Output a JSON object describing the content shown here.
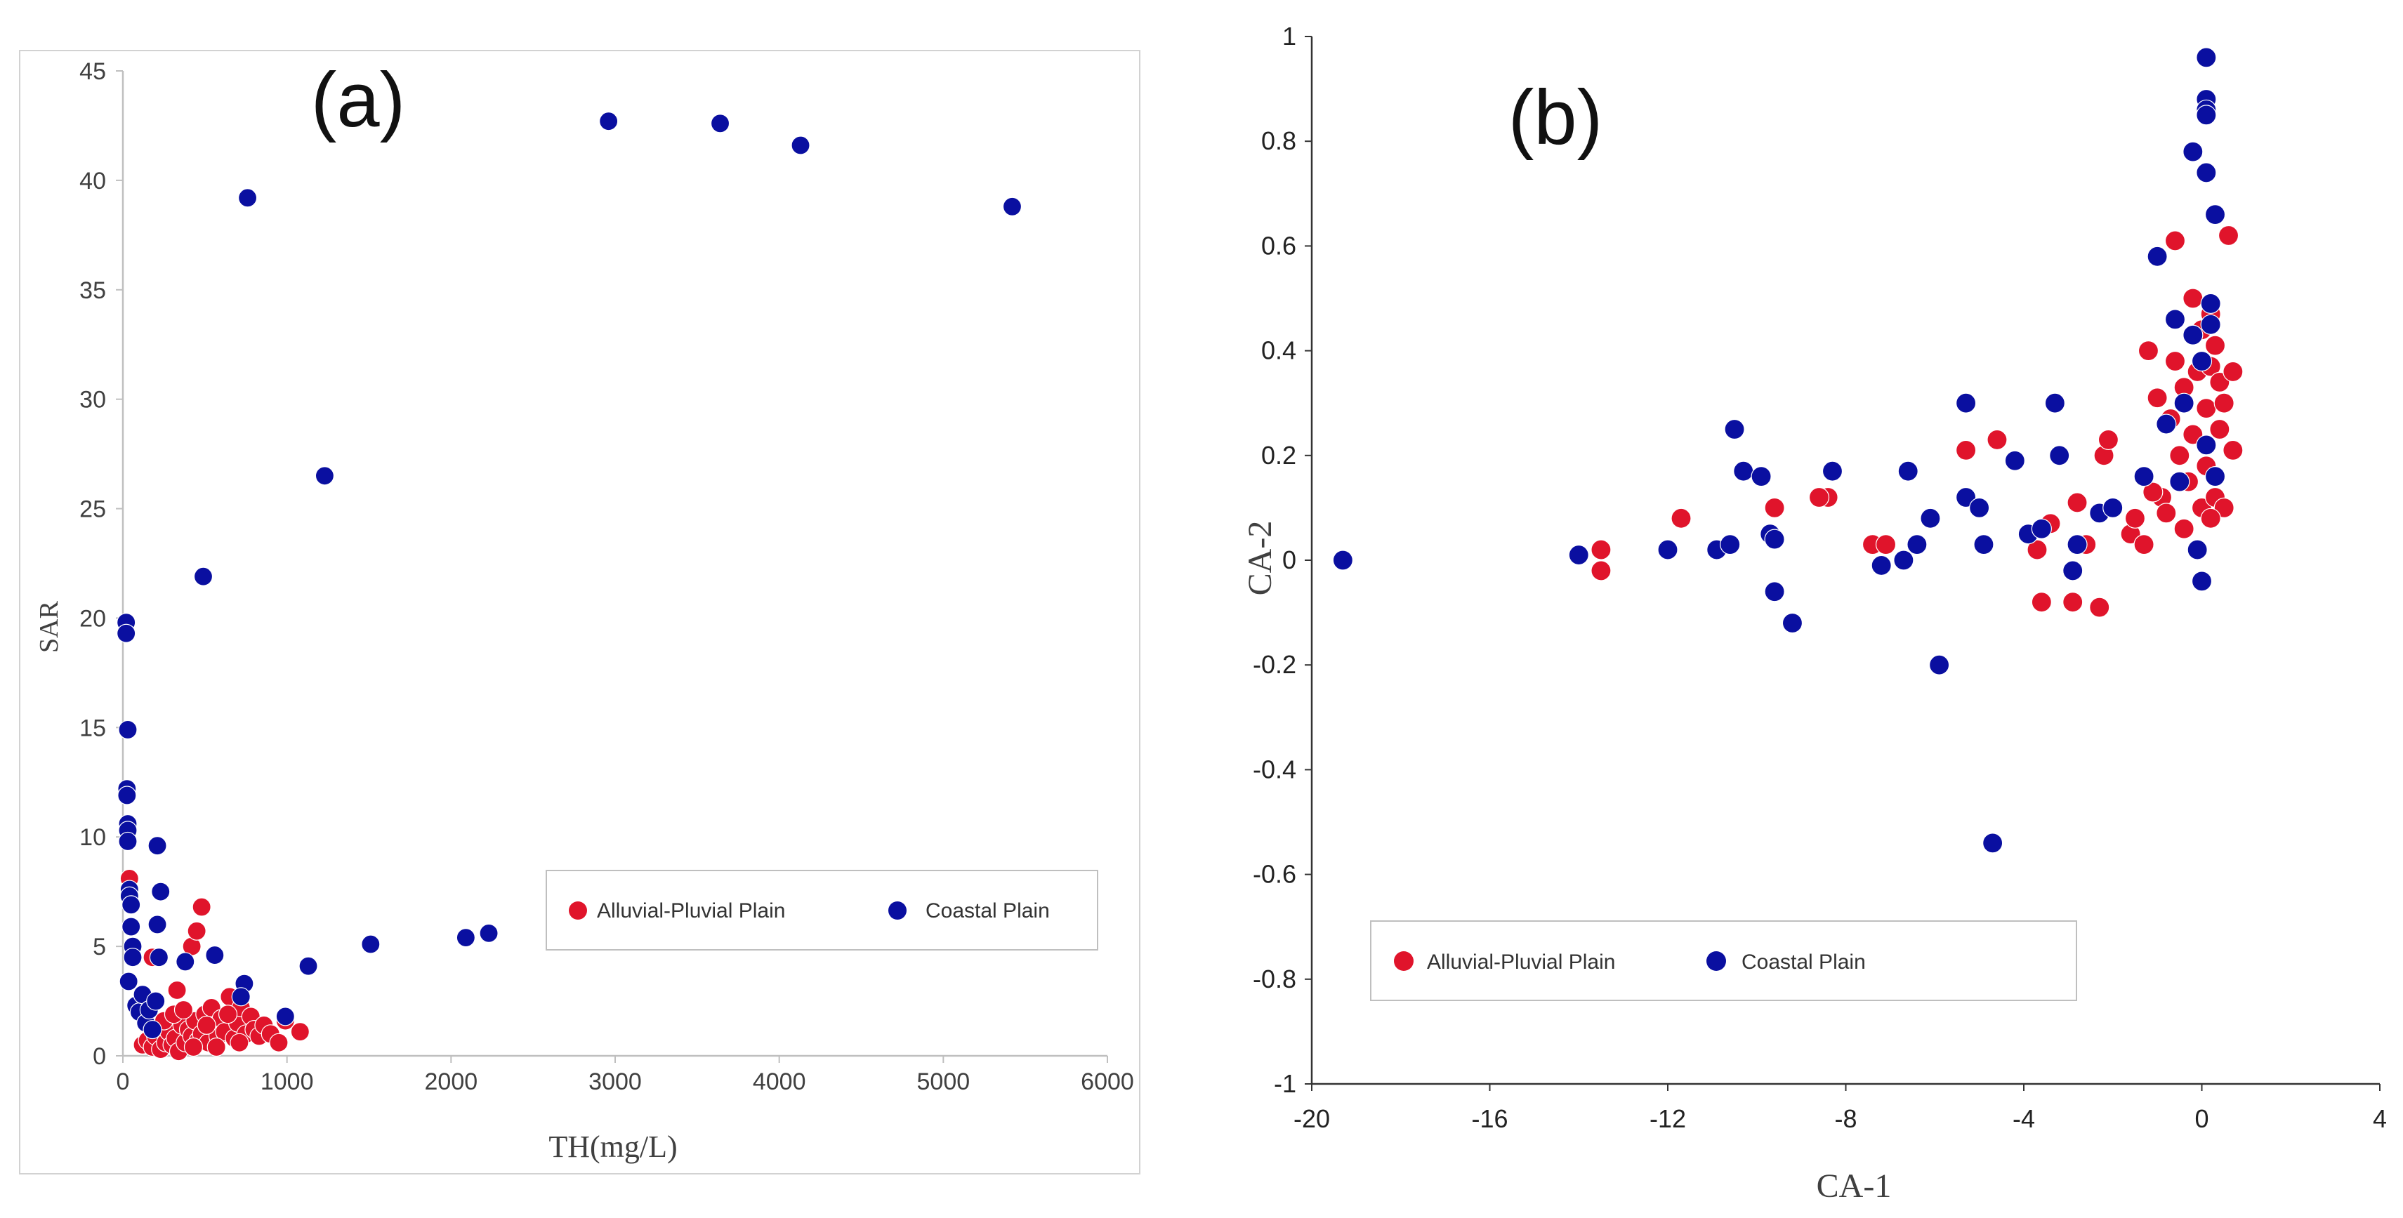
{
  "chart_data": [
    {
      "type": "scatter",
      "panel_label": "(a)",
      "xlabel": "TH(mg/L)",
      "ylabel": "SAR",
      "xlim": [
        0,
        6000
      ],
      "ylim": [
        0,
        45
      ],
      "xticks": [
        0,
        1000,
        2000,
        3000,
        4000,
        5000,
        6000
      ],
      "yticks": [
        0,
        5,
        10,
        15,
        20,
        25,
        30,
        35,
        40,
        45
      ],
      "grid": false,
      "legend_position": "lower-right",
      "series": [
        {
          "name": "Alluvial-Pluvial Plain",
          "color": "#e0142b",
          "points": [
            [
              40,
              8.1
            ],
            [
              180,
              4.5
            ],
            [
              330,
              3.0
            ],
            [
              420,
              5.0
            ],
            [
              450,
              5.7
            ],
            [
              480,
              6.8
            ],
            [
              120,
              0.5
            ],
            [
              150,
              0.7
            ],
            [
              180,
              0.4
            ],
            [
              200,
              0.9
            ],
            [
              230,
              0.3
            ],
            [
              260,
              0.6
            ],
            [
              280,
              1.1
            ],
            [
              300,
              0.5
            ],
            [
              320,
              0.8
            ],
            [
              340,
              0.2
            ],
            [
              360,
              1.4
            ],
            [
              380,
              0.6
            ],
            [
              400,
              1.2
            ],
            [
              420,
              0.9
            ],
            [
              440,
              1.6
            ],
            [
              460,
              0.7
            ],
            [
              480,
              1.0
            ],
            [
              500,
              1.9
            ],
            [
              520,
              0.6
            ],
            [
              540,
              2.2
            ],
            [
              560,
              1.3
            ],
            [
              580,
              0.9
            ],
            [
              600,
              1.7
            ],
            [
              620,
              1.1
            ],
            [
              650,
              2.7
            ],
            [
              680,
              0.8
            ],
            [
              700,
              1.5
            ],
            [
              720,
              2.2
            ],
            [
              750,
              1.0
            ],
            [
              780,
              1.8
            ],
            [
              800,
              1.2
            ],
            [
              830,
              0.9
            ],
            [
              860,
              1.4
            ],
            [
              900,
              1.0
            ],
            [
              950,
              0.6
            ],
            [
              990,
              1.6
            ],
            [
              1080,
              1.1
            ],
            [
              250,
              1.6
            ],
            [
              310,
              1.9
            ],
            [
              370,
              2.1
            ],
            [
              430,
              0.4
            ],
            [
              510,
              1.4
            ],
            [
              570,
              0.4
            ],
            [
              640,
              1.9
            ],
            [
              710,
              0.6
            ]
          ]
        },
        {
          "name": "Coastal Plain",
          "color": "#0a0fa0",
          "points": [
            [
              20,
              19.8
            ],
            [
              20,
              19.3
            ],
            [
              30,
              14.9
            ],
            [
              25,
              12.2
            ],
            [
              25,
              11.9
            ],
            [
              30,
              10.6
            ],
            [
              30,
              10.3
            ],
            [
              30,
              9.8
            ],
            [
              40,
              7.6
            ],
            [
              40,
              7.3
            ],
            [
              50,
              6.9
            ],
            [
              50,
              5.9
            ],
            [
              60,
              5.0
            ],
            [
              60,
              4.5
            ],
            [
              35,
              3.4
            ],
            [
              80,
              2.3
            ],
            [
              100,
              2.0
            ],
            [
              120,
              2.8
            ],
            [
              140,
              1.5
            ],
            [
              160,
              2.1
            ],
            [
              180,
              1.2
            ],
            [
              200,
              2.5
            ],
            [
              210,
              9.6
            ],
            [
              230,
              7.5
            ],
            [
              210,
              6.0
            ],
            [
              220,
              4.5
            ],
            [
              380,
              4.3
            ],
            [
              560,
              4.6
            ],
            [
              740,
              3.3
            ],
            [
              720,
              2.7
            ],
            [
              990,
              1.8
            ],
            [
              1130,
              4.1
            ],
            [
              1510,
              5.1
            ],
            [
              2090,
              5.4
            ],
            [
              2230,
              5.6
            ],
            [
              490,
              21.9
            ],
            [
              760,
              39.2
            ],
            [
              1230,
              26.5
            ],
            [
              2960,
              42.7
            ],
            [
              3640,
              42.6
            ],
            [
              4130,
              41.6
            ],
            [
              5420,
              38.8
            ]
          ]
        }
      ]
    },
    {
      "type": "scatter",
      "panel_label": "(b)",
      "xlabel": "CA-1",
      "ylabel": "CA-2",
      "xlim": [
        -20,
        4
      ],
      "ylim": [
        -1,
        1
      ],
      "xticks": [
        -20,
        -16,
        -12,
        -8,
        -4,
        0,
        4
      ],
      "yticks": [
        -1,
        -0.8,
        -0.6,
        -0.4,
        -0.2,
        0,
        0.2,
        0.4,
        0.6,
        0.8,
        1
      ],
      "grid": false,
      "legend_position": "lower-left",
      "series": [
        {
          "name": "Alluvial-Pluvial Plain",
          "color": "#e0142b",
          "points": [
            [
              -13.5,
              0.02
            ],
            [
              -13.5,
              -0.02
            ],
            [
              -11.7,
              0.08
            ],
            [
              -9.6,
              0.1
            ],
            [
              -8.4,
              0.12
            ],
            [
              -8.6,
              0.12
            ],
            [
              -7.4,
              0.03
            ],
            [
              -7.1,
              0.03
            ],
            [
              -5.3,
              0.21
            ],
            [
              -4.6,
              0.23
            ],
            [
              -3.6,
              -0.08
            ],
            [
              -3.7,
              0.02
            ],
            [
              -3.4,
              0.07
            ],
            [
              -2.9,
              -0.08
            ],
            [
              -2.8,
              0.11
            ],
            [
              -2.6,
              0.03
            ],
            [
              -2.3,
              -0.09
            ],
            [
              -2.2,
              0.2
            ],
            [
              -2.1,
              0.23
            ],
            [
              -1.6,
              0.05
            ],
            [
              -1.5,
              0.08
            ],
            [
              -1.3,
              0.03
            ],
            [
              -1.2,
              0.4
            ],
            [
              -1.0,
              0.31
            ],
            [
              -0.9,
              0.12
            ],
            [
              -0.8,
              0.09
            ],
            [
              -0.7,
              0.27
            ],
            [
              -0.6,
              0.38
            ],
            [
              -0.6,
              0.61
            ],
            [
              -0.5,
              0.2
            ],
            [
              -0.4,
              0.33
            ],
            [
              -0.3,
              0.15
            ],
            [
              -0.2,
              0.5
            ],
            [
              -0.2,
              0.24
            ],
            [
              -0.1,
              0.36
            ],
            [
              0.0,
              0.1
            ],
            [
              0.0,
              0.44
            ],
            [
              0.1,
              0.29
            ],
            [
              0.1,
              0.18
            ],
            [
              0.2,
              0.47
            ],
            [
              0.2,
              0.37
            ],
            [
              0.3,
              0.41
            ],
            [
              0.3,
              0.12
            ],
            [
              0.4,
              0.34
            ],
            [
              0.4,
              0.25
            ],
            [
              0.5,
              0.3
            ],
            [
              0.5,
              0.1
            ],
            [
              0.6,
              0.62
            ],
            [
              0.7,
              0.21
            ],
            [
              0.7,
              0.36
            ],
            [
              -1.1,
              0.13
            ],
            [
              -0.4,
              0.06
            ],
            [
              0.2,
              0.08
            ]
          ]
        },
        {
          "name": "Coastal Plain",
          "color": "#0a0fa0",
          "points": [
            [
              -19.3,
              0.0
            ],
            [
              -14.0,
              0.01
            ],
            [
              -12.0,
              0.02
            ],
            [
              -10.9,
              0.02
            ],
            [
              -10.6,
              0.03
            ],
            [
              -10.5,
              0.25
            ],
            [
              -10.3,
              0.17
            ],
            [
              -9.9,
              0.16
            ],
            [
              -9.7,
              0.05
            ],
            [
              -9.6,
              0.04
            ],
            [
              -9.6,
              -0.06
            ],
            [
              -9.2,
              -0.12
            ],
            [
              -8.3,
              0.17
            ],
            [
              -7.2,
              -0.01
            ],
            [
              -6.7,
              0.0
            ],
            [
              -6.6,
              0.17
            ],
            [
              -6.4,
              0.03
            ],
            [
              -6.1,
              0.08
            ],
            [
              -5.9,
              -0.2
            ],
            [
              -5.3,
              0.3
            ],
            [
              -5.3,
              0.12
            ],
            [
              -5.0,
              0.1
            ],
            [
              -4.9,
              0.03
            ],
            [
              -4.7,
              -0.54
            ],
            [
              -4.2,
              0.19
            ],
            [
              -3.9,
              0.05
            ],
            [
              -3.6,
              0.06
            ],
            [
              -3.3,
              0.3
            ],
            [
              -3.2,
              0.2
            ],
            [
              -2.9,
              -0.02
            ],
            [
              -2.8,
              0.03
            ],
            [
              -2.3,
              0.09
            ],
            [
              -2.0,
              0.1
            ],
            [
              -1.3,
              0.16
            ],
            [
              -1.0,
              0.58
            ],
            [
              -0.6,
              0.46
            ],
            [
              -0.4,
              0.3
            ],
            [
              -0.2,
              0.78
            ],
            [
              -0.1,
              0.02
            ],
            [
              0.0,
              -0.04
            ],
            [
              0.1,
              0.96
            ],
            [
              0.1,
              0.88
            ],
            [
              0.1,
              0.86
            ],
            [
              0.1,
              0.85
            ],
            [
              0.1,
              0.74
            ],
            [
              0.2,
              0.49
            ],
            [
              0.2,
              0.45
            ],
            [
              0.3,
              0.66
            ],
            [
              0.3,
              0.16
            ],
            [
              -0.5,
              0.15
            ],
            [
              -0.8,
              0.26
            ],
            [
              -0.2,
              0.43
            ],
            [
              0.0,
              0.38
            ],
            [
              0.1,
              0.22
            ]
          ]
        }
      ]
    }
  ]
}
